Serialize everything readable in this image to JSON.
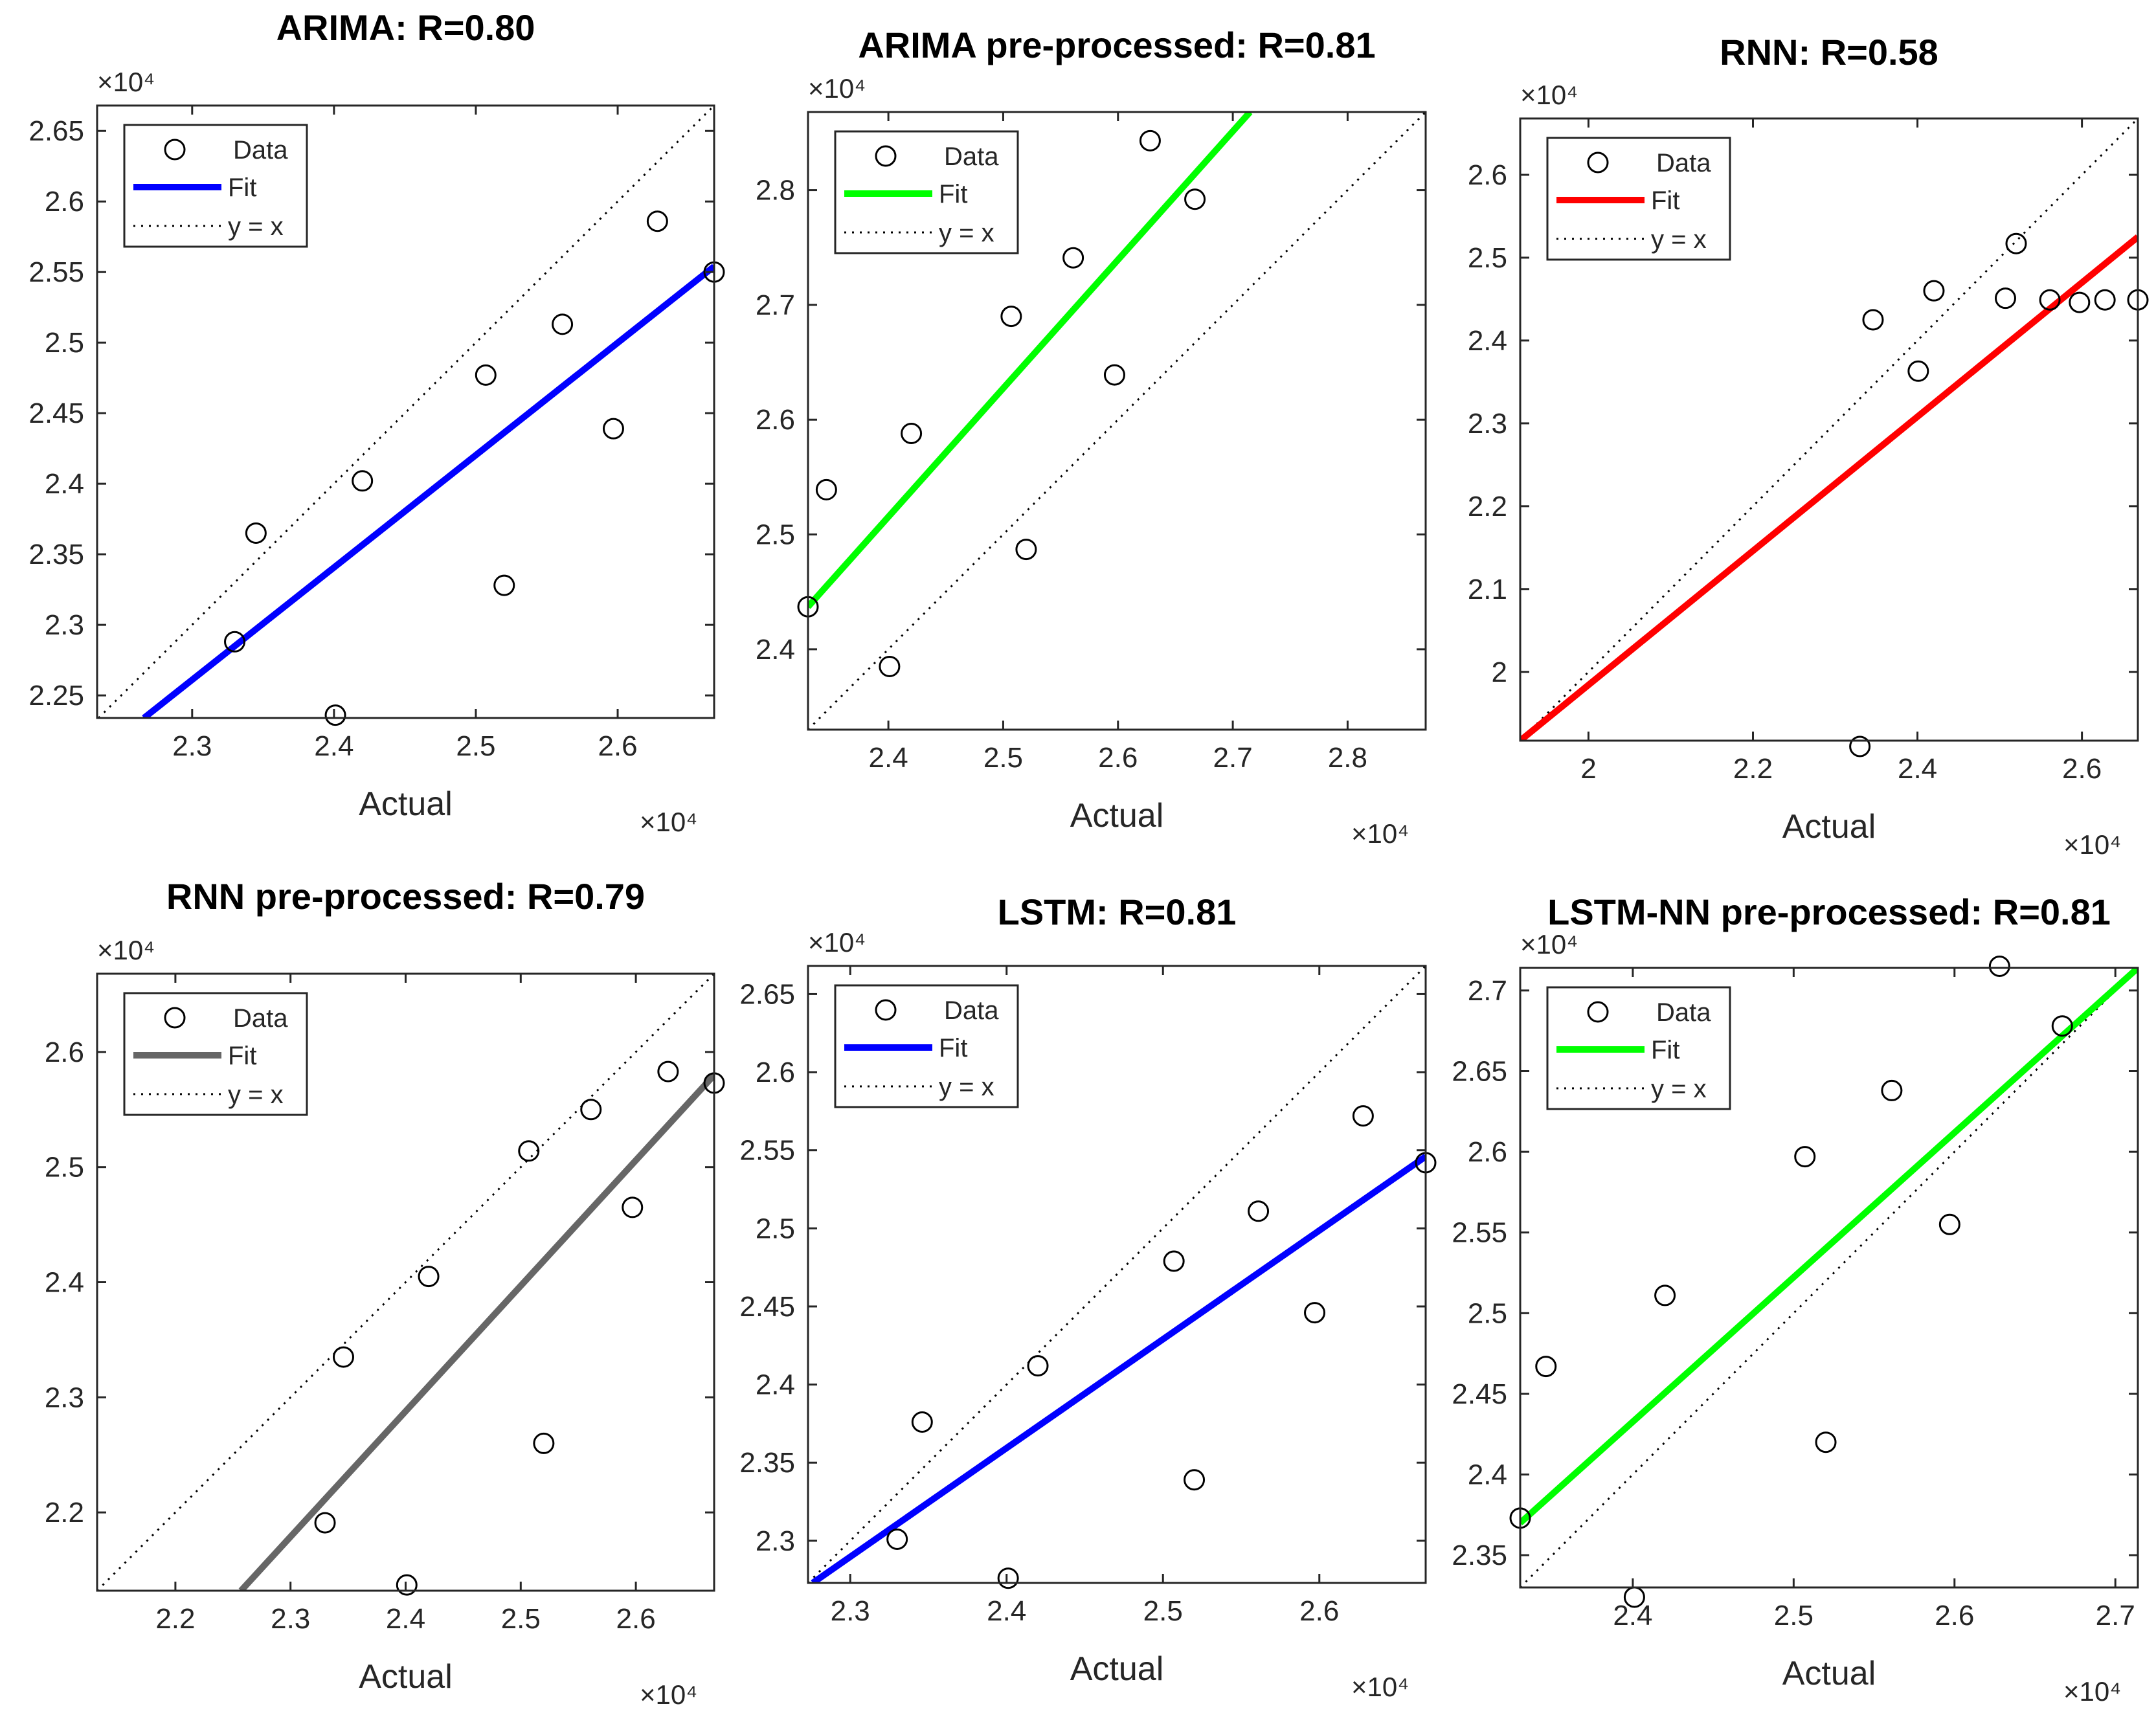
{
  "figure": {
    "xlabel_common": "Actual",
    "exponent_label": "×10",
    "exponent_power": "4"
  },
  "legend_labels": {
    "data": "Data",
    "fit": "Fit",
    "ref": "y = x"
  },
  "colors": {
    "blue": "#0000ff",
    "green": "#00ff00",
    "red": "#ff0000",
    "gray": "#666666",
    "axis": "#262626",
    "ref": "#000000"
  },
  "chart_data": [
    {
      "type": "scatter",
      "title": "ARIMA: R=0.80",
      "xlabel": "Actual",
      "ylabel": "",
      "xlim": [
        2.233,
        2.668
      ],
      "ylim": [
        2.234,
        2.668
      ],
      "xticks": [
        "2.3",
        "2.4",
        "2.5",
        "2.6"
      ],
      "xtick_values": [
        2.3,
        2.4,
        2.5,
        2.6
      ],
      "yticks": [
        "2.25",
        "2.3",
        "2.35",
        "2.4",
        "2.45",
        "2.5",
        "2.55",
        "2.6",
        "2.65"
      ],
      "ytick_values": [
        2.25,
        2.3,
        2.35,
        2.4,
        2.45,
        2.5,
        2.55,
        2.6,
        2.65
      ],
      "x_exponent": "×10⁴",
      "y_exponent": "×10⁴",
      "fit_color": "#0000ff",
      "points": [
        {
          "x": 2.33,
          "y": 2.288
        },
        {
          "x": 2.345,
          "y": 2.365
        },
        {
          "x": 2.401,
          "y": 2.236
        },
        {
          "x": 2.42,
          "y": 2.402
        },
        {
          "x": 2.507,
          "y": 2.477
        },
        {
          "x": 2.52,
          "y": 2.328
        },
        {
          "x": 2.561,
          "y": 2.513
        },
        {
          "x": 2.597,
          "y": 2.439
        },
        {
          "x": 2.628,
          "y": 2.586
        },
        {
          "x": 2.668,
          "y": 2.55
        }
      ],
      "fit": {
        "x1": 2.266,
        "y1": 2.234,
        "x2": 2.668,
        "y2": 2.554
      }
    },
    {
      "type": "scatter",
      "title": "ARIMA pre-processed: R=0.81",
      "xlabel": "Actual",
      "ylabel": "",
      "xlim": [
        2.33,
        2.868
      ],
      "ylim": [
        2.33,
        2.868
      ],
      "xticks": [
        "2.4",
        "2.5",
        "2.6",
        "2.7",
        "2.8"
      ],
      "xtick_values": [
        2.4,
        2.5,
        2.6,
        2.7,
        2.8
      ],
      "yticks": [
        "2.4",
        "2.5",
        "2.6",
        "2.7",
        "2.8"
      ],
      "ytick_values": [
        2.4,
        2.5,
        2.6,
        2.7,
        2.8
      ],
      "x_exponent": "×10⁴",
      "y_exponent": "×10⁴",
      "fit_color": "#00ff00",
      "points": [
        {
          "x": 2.33,
          "y": 2.437
        },
        {
          "x": 2.346,
          "y": 2.539
        },
        {
          "x": 2.401,
          "y": 2.385
        },
        {
          "x": 2.42,
          "y": 2.588
        },
        {
          "x": 2.507,
          "y": 2.69
        },
        {
          "x": 2.52,
          "y": 2.487
        },
        {
          "x": 2.561,
          "y": 2.741
        },
        {
          "x": 2.597,
          "y": 2.639
        },
        {
          "x": 2.628,
          "y": 2.843
        },
        {
          "x": 2.667,
          "y": 2.792
        }
      ],
      "fit": {
        "x1": 2.33,
        "y1": 2.437,
        "x2": 2.715,
        "y2": 2.868
      }
    },
    {
      "type": "scatter",
      "title": "RNN: R=0.58",
      "xlabel": "Actual",
      "ylabel": "",
      "xlim": [
        1.917,
        2.668
      ],
      "ylim": [
        1.917,
        2.668
      ],
      "xticks": [
        "2",
        "2.2",
        "2.4",
        "2.6"
      ],
      "xtick_values": [
        2.0,
        2.2,
        2.4,
        2.6
      ],
      "yticks": [
        "2",
        "2.1",
        "2.2",
        "2.3",
        "2.4",
        "2.5",
        "2.6"
      ],
      "ytick_values": [
        2.0,
        2.1,
        2.2,
        2.3,
        2.4,
        2.5,
        2.6
      ],
      "x_exponent": "×10⁴",
      "y_exponent": "×10⁴",
      "fit_color": "#ff0000",
      "points": [
        {
          "x": 2.33,
          "y": 1.91
        },
        {
          "x": 2.346,
          "y": 2.425
        },
        {
          "x": 2.401,
          "y": 2.363
        },
        {
          "x": 2.42,
          "y": 2.46
        },
        {
          "x": 2.507,
          "y": 2.451
        },
        {
          "x": 2.52,
          "y": 2.517
        },
        {
          "x": 2.561,
          "y": 2.449
        },
        {
          "x": 2.597,
          "y": 2.446
        },
        {
          "x": 2.628,
          "y": 2.449
        },
        {
          "x": 2.668,
          "y": 2.449
        }
      ],
      "fit": {
        "x1": 1.917,
        "y1": 1.917,
        "x2": 2.668,
        "y2": 2.525
      }
    },
    {
      "type": "scatter",
      "title": "RNN pre-processed: R=0.79",
      "xlabel": "Actual",
      "ylabel": "",
      "xlim": [
        2.132,
        2.668
      ],
      "ylim": [
        2.132,
        2.668
      ],
      "xticks": [
        "2.2",
        "2.3",
        "2.4",
        "2.5",
        "2.6"
      ],
      "xtick_values": [
        2.2,
        2.3,
        2.4,
        2.5,
        2.6
      ],
      "yticks": [
        "2.2",
        "2.3",
        "2.4",
        "2.5",
        "2.6"
      ],
      "ytick_values": [
        2.2,
        2.3,
        2.4,
        2.5,
        2.6
      ],
      "x_exponent": "×10⁴",
      "y_exponent": "×10⁴",
      "fit_color": "#666666",
      "points": [
        {
          "x": 2.33,
          "y": 2.191
        },
        {
          "x": 2.346,
          "y": 2.335
        },
        {
          "x": 2.401,
          "y": 2.137
        },
        {
          "x": 2.42,
          "y": 2.405
        },
        {
          "x": 2.507,
          "y": 2.514
        },
        {
          "x": 2.52,
          "y": 2.26
        },
        {
          "x": 2.561,
          "y": 2.55
        },
        {
          "x": 2.597,
          "y": 2.465
        },
        {
          "x": 2.628,
          "y": 2.583
        },
        {
          "x": 2.668,
          "y": 2.573
        }
      ],
      "fit": {
        "x1": 2.257,
        "y1": 2.132,
        "x2": 2.668,
        "y2": 2.58
      }
    },
    {
      "type": "scatter",
      "title": "LSTM: R=0.81",
      "xlabel": "Actual",
      "ylabel": "",
      "xlim": [
        2.273,
        2.668
      ],
      "ylim": [
        2.273,
        2.668
      ],
      "xticks": [
        "2.3",
        "2.4",
        "2.5",
        "2.6"
      ],
      "xtick_values": [
        2.3,
        2.4,
        2.5,
        2.6
      ],
      "yticks": [
        "2.3",
        "2.35",
        "2.4",
        "2.45",
        "2.5",
        "2.55",
        "2.6",
        "2.65"
      ],
      "ytick_values": [
        2.3,
        2.35,
        2.4,
        2.45,
        2.5,
        2.55,
        2.6,
        2.65
      ],
      "x_exponent": "×10⁴",
      "y_exponent": "×10⁴",
      "fit_color": "#0000ff",
      "points": [
        {
          "x": 2.33,
          "y": 2.301
        },
        {
          "x": 2.346,
          "y": 2.376
        },
        {
          "x": 2.401,
          "y": 2.276
        },
        {
          "x": 2.42,
          "y": 2.412
        },
        {
          "x": 2.507,
          "y": 2.479
        },
        {
          "x": 2.52,
          "y": 2.339
        },
        {
          "x": 2.561,
          "y": 2.511
        },
        {
          "x": 2.597,
          "y": 2.446
        },
        {
          "x": 2.628,
          "y": 2.572
        },
        {
          "x": 2.668,
          "y": 2.542
        }
      ],
      "fit": {
        "x1": 2.276,
        "y1": 2.273,
        "x2": 2.668,
        "y2": 2.546
      }
    },
    {
      "type": "scatter",
      "title": "LSTM-NN pre-processed: R=0.81",
      "xlabel": "Actual",
      "ylabel": "",
      "xlim": [
        2.33,
        2.714
      ],
      "ylim": [
        2.33,
        2.714
      ],
      "xticks": [
        "2.4",
        "2.5",
        "2.6",
        "2.7"
      ],
      "xtick_values": [
        2.4,
        2.5,
        2.6,
        2.7
      ],
      "yticks": [
        "2.35",
        "2.4",
        "2.45",
        "2.5",
        "2.55",
        "2.6",
        "2.65",
        "2.7"
      ],
      "ytick_values": [
        2.35,
        2.4,
        2.45,
        2.5,
        2.55,
        2.6,
        2.65,
        2.7
      ],
      "x_exponent": "×10⁴",
      "y_exponent": "×10⁴",
      "fit_color": "#00ff00",
      "points": [
        {
          "x": 2.33,
          "y": 2.373
        },
        {
          "x": 2.346,
          "y": 2.467
        },
        {
          "x": 2.401,
          "y": 2.324
        },
        {
          "x": 2.42,
          "y": 2.511
        },
        {
          "x": 2.507,
          "y": 2.597
        },
        {
          "x": 2.52,
          "y": 2.42
        },
        {
          "x": 2.561,
          "y": 2.638
        },
        {
          "x": 2.597,
          "y": 2.555
        },
        {
          "x": 2.628,
          "y": 2.715
        },
        {
          "x": 2.667,
          "y": 2.678
        }
      ],
      "fit": {
        "x1": 2.33,
        "y1": 2.37,
        "x2": 2.714,
        "y2": 2.714
      }
    }
  ]
}
